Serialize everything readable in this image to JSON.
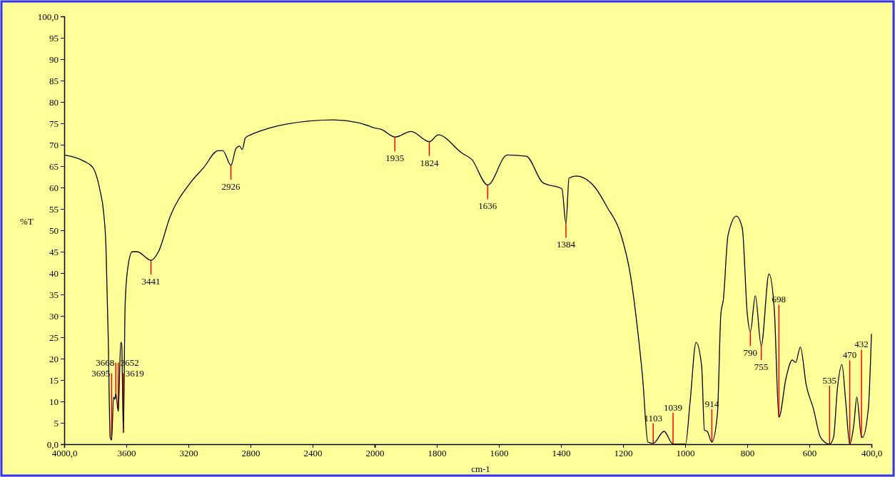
{
  "chart_data": [
    {
      "type": "line",
      "ylabel": "%T",
      "xlim": [
        4000,
        2000
      ],
      "xticks": [
        {
          "value": 4000,
          "label": "4000,0"
        },
        3600,
        3200,
        2800,
        2400,
        2000
      ],
      "ylim": [
        0,
        100
      ],
      "yticks": [
        {
          "value": 0,
          "label": "0,0"
        },
        5,
        10,
        15,
        20,
        25,
        30,
        35,
        40,
        45,
        50,
        55,
        60,
        65,
        70,
        75,
        80,
        85,
        90,
        95,
        {
          "value": 100,
          "label": "100,0"
        }
      ],
      "series": [
        {
          "color": "#000000",
          "x": [
            4000,
            3870,
            3816,
            3770,
            3747,
            3731,
            3716,
            3704,
            3695,
            3682,
            3673,
            3668,
            3652,
            3636,
            3630,
            3619,
            3608,
            3593,
            3562,
            3531,
            3441,
            3393,
            3317,
            3194,
            3101,
            3009,
            2978,
            2926,
            2894,
            2871,
            2853,
            2833,
            2794,
            2687,
            2571,
            2264,
            2111,
            2000
          ],
          "values": [
            67.6,
            66.1,
            64.7,
            59.4,
            54.4,
            46,
            23.8,
            1.6,
            1,
            11,
            10.5,
            11.9,
            7.7,
            23.8,
            23.5,
            2.7,
            32.2,
            40.5,
            45,
            45,
            43,
            45,
            53.3,
            60.8,
            64.7,
            68.6,
            68.6,
            65.2,
            69.1,
            69.7,
            68.9,
            71.6,
            72.4,
            73.8,
            74.8,
            75.8,
            75.2,
            73.9
          ]
        }
      ],
      "annotations": [
        {
          "text": "3695",
          "x": 3695,
          "y": 1
        },
        {
          "text": "3668",
          "x": 3668,
          "y": 11.9
        },
        {
          "text": "3652",
          "x": 3652,
          "y": 7.7
        },
        {
          "text": "3619",
          "x": 3619,
          "y": 2.7
        },
        {
          "text": "3441",
          "x": 3441,
          "y": 43
        },
        {
          "text": "2926",
          "x": 2926,
          "y": 65.2
        }
      ]
    },
    {
      "type": "line",
      "xlabel": "cm-1",
      "tick_labels": "x",
      "xlim": [
        2000,
        400
      ],
      "xticks": [
        1800,
        1600,
        1400,
        1200,
        1000,
        800,
        600,
        {
          "value": 400,
          "label": "400,0"
        }
      ],
      "ylim": [
        0,
        100
      ],
      "series": [
        {
          "color": "#000000",
          "x": [
            2000,
            1979,
            1935,
            1883,
            1824,
            1795,
            1718,
            1688,
            1636,
            1573,
            1512,
            1458,
            1397,
            1384,
            1374,
            1351,
            1290,
            1252,
            1206,
            1176,
            1153,
            1137,
            1120,
            1103,
            1068,
            1039,
            999,
            984,
            965,
            947,
            938,
            929,
            914,
            896,
            885,
            877,
            862,
            835,
            816,
            800,
            790,
            774,
            755,
            730,
            713,
            698,
            675,
            655,
            644,
            629,
            610,
            587,
            564,
            535,
            522,
            510,
            495,
            483,
            470,
            457,
            447,
            432,
            429,
            410,
            400
          ],
          "values": [
            73.9,
            73.6,
            71.8,
            73.1,
            70.7,
            72.3,
            68,
            66.6,
            60.6,
            67.6,
            67.3,
            61.1,
            59.7,
            51.6,
            62.2,
            62.7,
            60,
            55.5,
            48.8,
            39.4,
            26.6,
            15.5,
            0.5,
            0.2,
            3,
            0,
            0,
            10,
            23.8,
            18.3,
            3.3,
            3,
            0.5,
            7.2,
            30.5,
            33.8,
            48.8,
            53.3,
            50.5,
            30.5,
            26.3,
            34.7,
            23,
            39.8,
            31.6,
            6.3,
            15.5,
            19.7,
            19.1,
            22.7,
            13.8,
            8.3,
            1.6,
            0,
            1.6,
            12.7,
            18.6,
            10,
            0,
            4.4,
            11,
            1.6,
            1.6,
            8.3,
            25.8
          ]
        }
      ],
      "annotations": [
        {
          "text": "1935",
          "x": 1935,
          "y": 71.8
        },
        {
          "text": "1824",
          "x": 1824,
          "y": 70.7
        },
        {
          "text": "1636",
          "x": 1636,
          "y": 60.6
        },
        {
          "text": "1384",
          "x": 1384,
          "y": 51.6
        },
        {
          "text": "1103",
          "x": 1103,
          "y": 0.2
        },
        {
          "text": "1039",
          "x": 1039,
          "y": 0
        },
        {
          "text": "914",
          "x": 914,
          "y": 0.5
        },
        {
          "text": "790",
          "x": 790,
          "y": 26.3
        },
        {
          "text": "755",
          "x": 755,
          "y": 23
        },
        {
          "text": "698",
          "x": 698,
          "y": 6.3
        },
        {
          "text": "535",
          "x": 535,
          "y": 0
        },
        {
          "text": "470",
          "x": 470,
          "y": 0
        },
        {
          "text": "432",
          "x": 432,
          "y": 1.6
        }
      ]
    }
  ]
}
